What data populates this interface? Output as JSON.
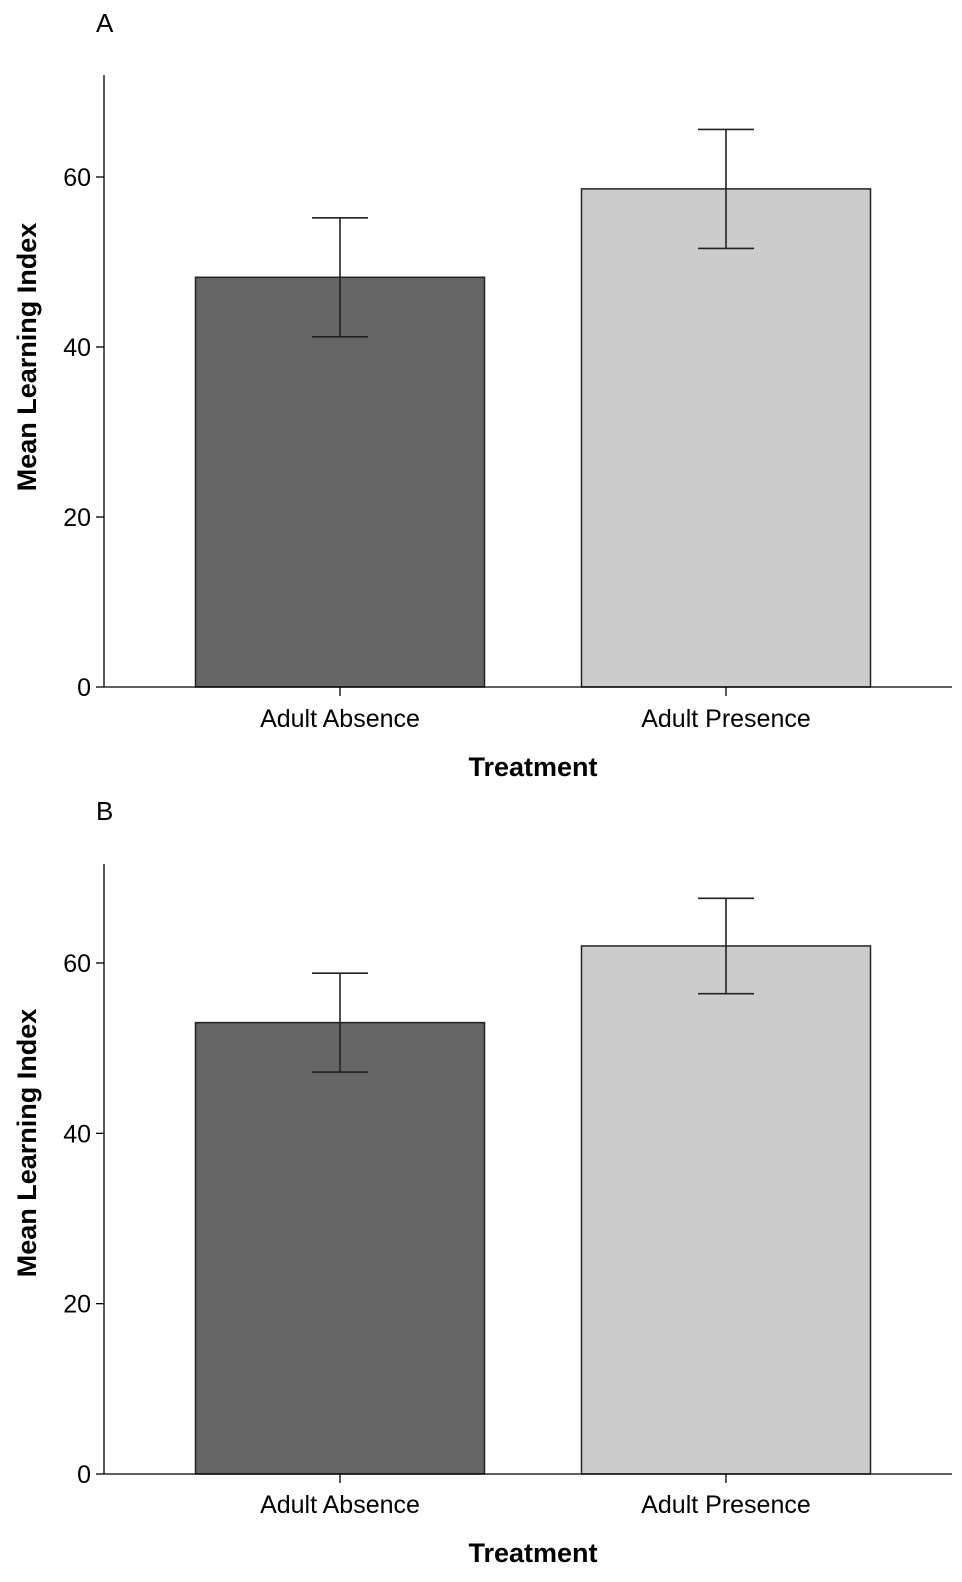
{
  "chart_data": [
    {
      "type": "bar",
      "panel_label": "A",
      "categories": [
        "Adult Absence",
        "Adult Presence"
      ],
      "values": [
        48.2,
        58.6
      ],
      "error_low": [
        41.2,
        51.6
      ],
      "error_high": [
        55.2,
        65.6
      ],
      "bar_colors": [
        "#666666",
        "#cccccc"
      ],
      "xlabel": "Treatment",
      "ylabel": "Mean Learning Index",
      "ylim": [
        0,
        72
      ],
      "yticks": [
        "0",
        "20",
        "40",
        "60"
      ],
      "grid": false
    },
    {
      "type": "bar",
      "panel_label": "B",
      "categories": [
        "Adult Absence",
        "Adult Presence"
      ],
      "values": [
        53.0,
        62.0
      ],
      "error_low": [
        47.2,
        56.4
      ],
      "error_high": [
        58.8,
        67.6
      ],
      "bar_colors": [
        "#666666",
        "#cccccc"
      ],
      "xlabel": "Treatment",
      "ylabel": "Mean Learning Index",
      "ylim": [
        0,
        72
      ],
      "yticks": [
        "0",
        "20",
        "40",
        "60"
      ],
      "grid": false
    }
  ]
}
